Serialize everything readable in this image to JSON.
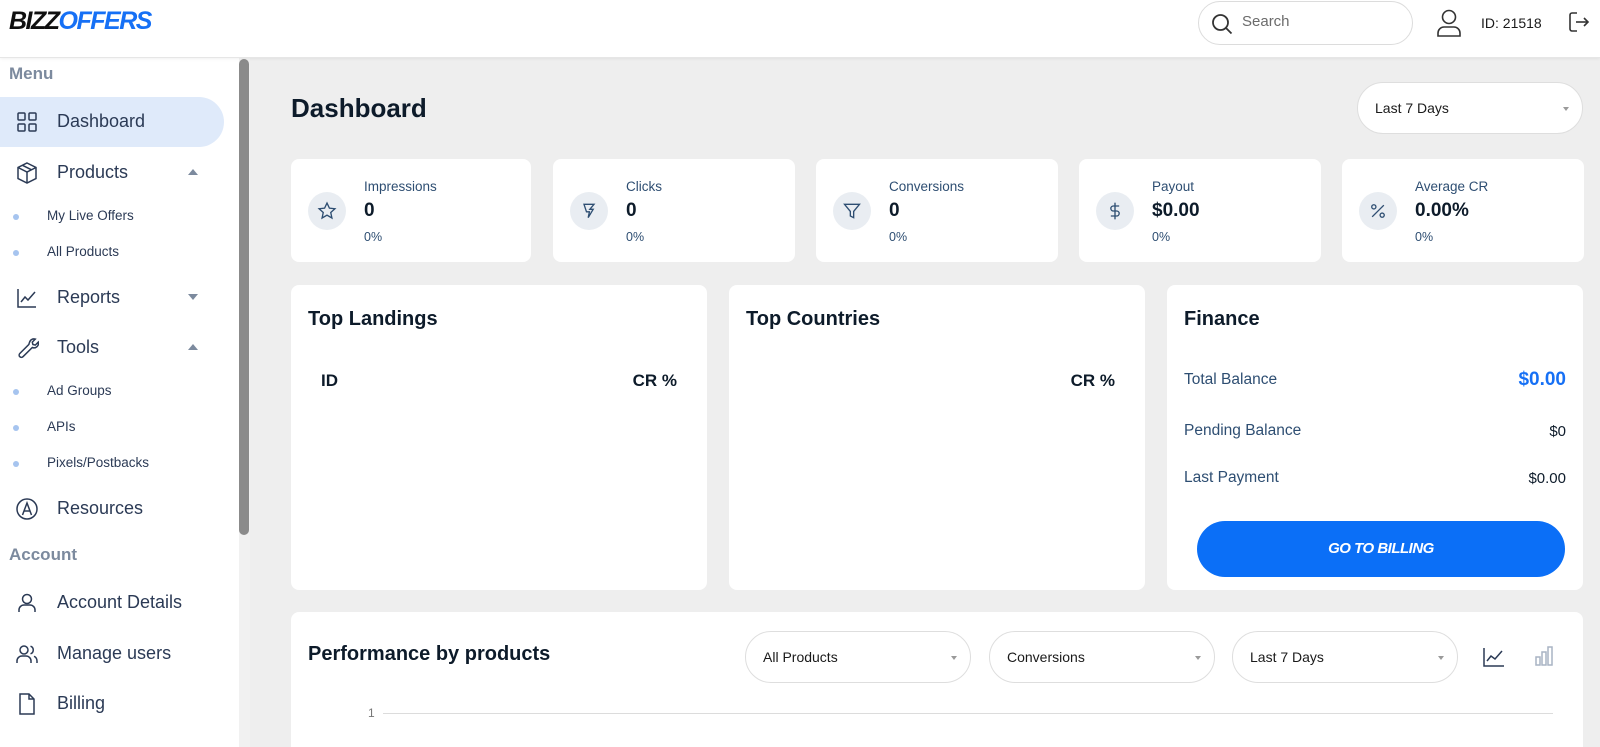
{
  "logo": {
    "part1": "BIZZ",
    "part2": "OFFERS"
  },
  "header": {
    "search_placeholder": "Search",
    "user_id": "ID: 21518"
  },
  "sidebar": {
    "menu_title": "Menu",
    "items": {
      "dashboard": "Dashboard",
      "products": "Products",
      "my_live_offers": "My Live Offers",
      "all_products": "All Products",
      "reports": "Reports",
      "tools": "Tools",
      "ad_groups": "Ad Groups",
      "apis": "APIs",
      "pixels_postbacks": "Pixels/Postbacks",
      "resources": "Resources"
    },
    "account_title": "Account",
    "account_items": {
      "account_details": "Account Details",
      "manage_users": "Manage users",
      "billing": "Billing"
    }
  },
  "main": {
    "title": "Dashboard",
    "date_range": "Last 7 Days",
    "stats": [
      {
        "label": "Impressions",
        "value": "0",
        "change": "0%",
        "icon": "star-icon"
      },
      {
        "label": "Clicks",
        "value": "0",
        "change": "0%",
        "icon": "click-icon"
      },
      {
        "label": "Conversions",
        "value": "0",
        "change": "0%",
        "icon": "filter-icon"
      },
      {
        "label": "Payout",
        "value": "$0.00",
        "change": "0%",
        "icon": "dollar-icon"
      },
      {
        "label": "Average CR",
        "value": "0.00%",
        "change": "0%",
        "icon": "percent-icon"
      }
    ],
    "top_landings": {
      "title": "Top Landings",
      "col_id": "ID",
      "col_cr": "CR %"
    },
    "top_countries": {
      "title": "Top Countries",
      "col_cr": "CR %"
    },
    "finance": {
      "title": "Finance",
      "total_balance_label": "Total Balance",
      "total_balance_value": "$0.00",
      "pending_balance_label": "Pending Balance",
      "pending_balance_value": "$0",
      "last_payment_label": "Last Payment",
      "last_payment_value": "$0.00",
      "billing_button": "GO TO BILLING"
    },
    "performance": {
      "title": "Performance by products",
      "product_filter": "All Products",
      "metric_filter": "Conversions",
      "period_filter": "Last 7 Days",
      "y_tick": "1"
    }
  },
  "colors": {
    "accent": "#0b6ff7",
    "active_bg": "#dfeafa",
    "text_blue": "#2e4e72"
  }
}
